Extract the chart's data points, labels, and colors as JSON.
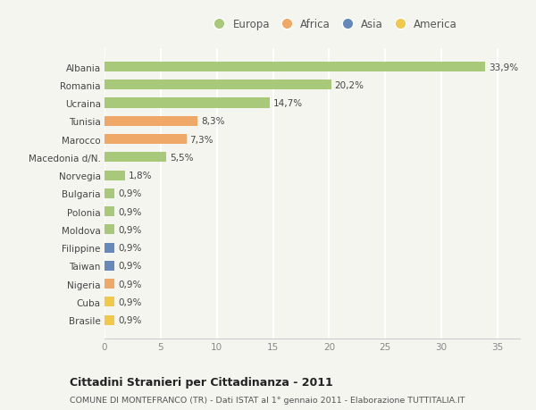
{
  "categories": [
    "Albania",
    "Romania",
    "Ucraina",
    "Tunisia",
    "Marocco",
    "Macedonia d/N.",
    "Norvegia",
    "Bulgaria",
    "Polonia",
    "Moldova",
    "Filippine",
    "Taiwan",
    "Nigeria",
    "Cuba",
    "Brasile"
  ],
  "values": [
    33.9,
    20.2,
    14.7,
    8.3,
    7.3,
    5.5,
    1.8,
    0.9,
    0.9,
    0.9,
    0.9,
    0.9,
    0.9,
    0.9,
    0.9
  ],
  "labels": [
    "33,9%",
    "20,2%",
    "14,7%",
    "8,3%",
    "7,3%",
    "5,5%",
    "1,8%",
    "0,9%",
    "0,9%",
    "0,9%",
    "0,9%",
    "0,9%",
    "0,9%",
    "0,9%",
    "0,9%"
  ],
  "colors": [
    "#a8c87a",
    "#a8c87a",
    "#a8c87a",
    "#f0a868",
    "#f0a868",
    "#a8c87a",
    "#a8c87a",
    "#a8c87a",
    "#a8c87a",
    "#a8c87a",
    "#6688bb",
    "#6688bb",
    "#f0a868",
    "#f0c84a",
    "#f0c84a"
  ],
  "continent_colors": {
    "Europa": "#a8c87a",
    "Africa": "#f0a868",
    "Asia": "#6688bb",
    "America": "#f0c84a"
  },
  "title": "Cittadini Stranieri per Cittadinanza - 2011",
  "subtitle": "COMUNE DI MONTEFRANCO (TR) - Dati ISTAT al 1° gennaio 2011 - Elaborazione TUTTITALIA.IT",
  "xlim": [
    0,
    37
  ],
  "xticks": [
    0,
    5,
    10,
    15,
    20,
    25,
    30,
    35
  ],
  "background_color": "#f5f5f0",
  "grid_color": "#ffffff"
}
